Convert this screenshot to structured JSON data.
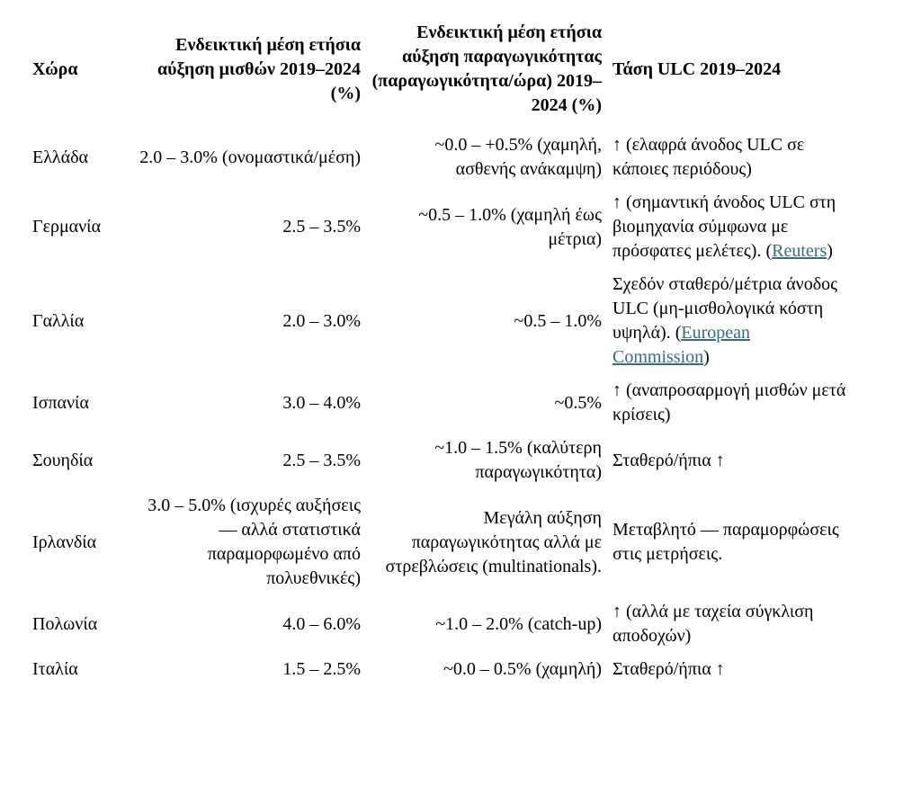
{
  "colors": {
    "background": "#ffffff",
    "text": "#000000",
    "link": "#336e7b"
  },
  "table": {
    "headers": {
      "country": "Χώρα",
      "wage": "Ενδεικτική μέση ετήσια αύξηση μισθών 2019–2024 (%)",
      "productivity": "Ενδεικτική μέση ετήσια αύξηση παραγωγικότητας (παραγωγικότητα/ώρα) 2019–2024 (%)",
      "ulc_trend": "Τάση ULC 2019–2024"
    },
    "rows": [
      {
        "country": "Ελλάδα",
        "wage": "2.0 – 3.0% (ονομαστικά/μέση)",
        "productivity": "~0.0 – +0.5% (χαμηλή, ασθενής ανάκαμψη)",
        "trend": {
          "before": "↑ (ελαφρά άνοδος ULC σε κάποιες περιόδους)",
          "link": "",
          "after": ""
        }
      },
      {
        "country": "Γερμανία",
        "wage": "2.5 – 3.5%",
        "productivity": "~0.5 – 1.0% (χαμηλή έως μέτρια)",
        "trend": {
          "before": "↑ (σημαντική άνοδος ULC στη βιομηχανία σύμφωνα με πρόσφατες μελέτες). (",
          "link": "Reuters",
          "after": ")"
        }
      },
      {
        "country": "Γαλλία",
        "wage": "2.0 – 3.0%",
        "productivity": "~0.5 – 1.0%",
        "trend": {
          "before": "Σχεδόν σταθερό/μέτρια άνοδος ULC (μη-μισθολογικά κόστη υψηλά). (",
          "link": "European Commission",
          "after": ")"
        }
      },
      {
        "country": "Ισπανία",
        "wage": "3.0 – 4.0%",
        "productivity": "~0.5%",
        "trend": {
          "before": "↑ (αναπροσαρμογή μισθών μετά κρίσεις)",
          "link": "",
          "after": ""
        }
      },
      {
        "country": "Σουηδία",
        "wage": "2.5 – 3.5%",
        "productivity": "~1.0 – 1.5% (καλύτερη παραγωγικότητα)",
        "trend": {
          "before": "Σταθερό/ήπια ↑",
          "link": "",
          "after": ""
        }
      },
      {
        "country": "Ιρλανδία",
        "wage": "3.0 – 5.0% (ισχυρές αυξήσεις — αλλά στατιστικά παραμορφωμένο από πολυεθνικές)",
        "productivity": "Μεγάλη αύξηση παραγωγικότητας αλλά με στρεβλώσεις (multinationals).",
        "trend": {
          "before": "Μεταβλητό — παραμορφώσεις στις μετρήσεις.",
          "link": "",
          "after": ""
        }
      },
      {
        "country": "Πολωνία",
        "wage": "4.0 – 6.0%",
        "productivity": "~1.0 – 2.0% (catch-up)",
        "trend": {
          "before": "↑ (αλλά με ταχεία σύγκλιση αποδοχών)",
          "link": "",
          "after": ""
        }
      },
      {
        "country": "Ιταλία",
        "wage": "1.5 – 2.5%",
        "productivity": "~0.0 – 0.5% (χαμηλή)",
        "trend": {
          "before": "Σταθερό/ήπια ↑",
          "link": "",
          "after": ""
        }
      }
    ]
  }
}
